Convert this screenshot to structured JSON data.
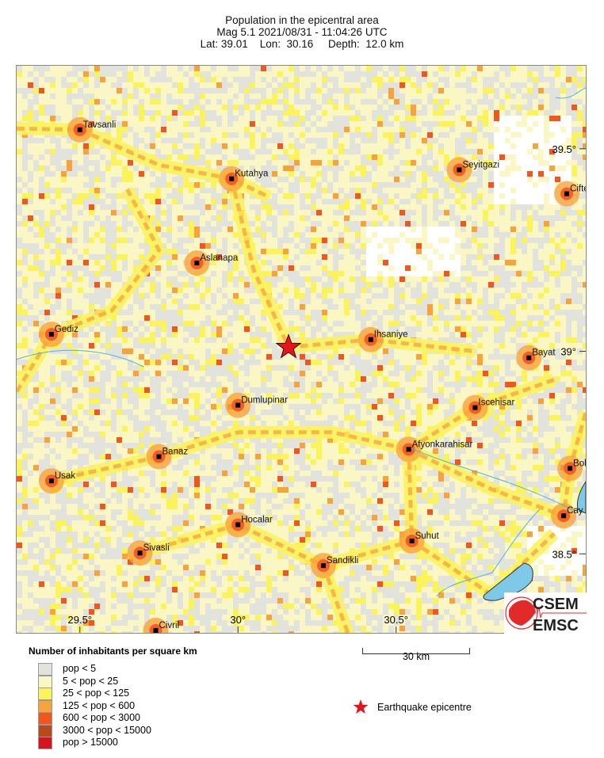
{
  "header": {
    "title": "Population in the epicentral area",
    "line2": "Mag 5.1  2021/08/31 - 11:04:26 UTC",
    "line3": "Lat: 39.01    Lon:  30.16     Depth:  12.0 km"
  },
  "map": {
    "extent": {
      "lon_min": 29.3,
      "lon_max": 31.1,
      "lat_min": 38.305,
      "lat_max": 39.705
    },
    "lon_ticks": [
      {
        "value": 29.5,
        "label": "29.5°"
      },
      {
        "value": 30,
        "label": "30°"
      },
      {
        "value": 30.5,
        "label": "30.5°"
      }
    ],
    "lat_ticks": [
      {
        "value": 39.5,
        "label": "39.5°"
      },
      {
        "value": 39,
        "label": "39°"
      },
      {
        "value": 38.5,
        "label": "38.5°"
      }
    ],
    "epicentre": {
      "lon": 30.16,
      "lat": 39.01,
      "color": "#e8141c"
    },
    "cities": [
      {
        "name": "Tavsanli",
        "lon": 29.5,
        "lat": 39.547
      },
      {
        "name": "Kutahya",
        "lon": 29.98,
        "lat": 39.426
      },
      {
        "name": "Aslanapa",
        "lon": 29.87,
        "lat": 39.218
      },
      {
        "name": "Gediz",
        "lon": 29.41,
        "lat": 39.042
      },
      {
        "name": "Ihsaniye",
        "lon": 30.42,
        "lat": 39.029
      },
      {
        "name": "Seyitgazi",
        "lon": 30.7,
        "lat": 39.448
      },
      {
        "name": "Cifte",
        "lon": 31.04,
        "lat": 39.389
      },
      {
        "name": "Bayat",
        "lon": 30.92,
        "lat": 38.984
      },
      {
        "name": "Dumlupinar",
        "lon": 30.0,
        "lat": 38.867
      },
      {
        "name": "Iscehisar",
        "lon": 30.75,
        "lat": 38.861
      },
      {
        "name": "Afyonkarahisar",
        "lon": 30.54,
        "lat": 38.758
      },
      {
        "name": "Banaz",
        "lon": 29.75,
        "lat": 38.74
      },
      {
        "name": "Usak",
        "lon": 29.41,
        "lat": 38.68
      },
      {
        "name": "Bol",
        "lon": 31.05,
        "lat": 38.711
      },
      {
        "name": "Cay",
        "lon": 31.03,
        "lat": 38.594
      },
      {
        "name": "Hocalar",
        "lon": 30.0,
        "lat": 38.572
      },
      {
        "name": "Suhut",
        "lon": 30.55,
        "lat": 38.532
      },
      {
        "name": "Sivasli",
        "lon": 29.69,
        "lat": 38.502
      },
      {
        "name": "Sandikli",
        "lon": 30.27,
        "lat": 38.471
      },
      {
        "name": "Civril",
        "lon": 29.74,
        "lat": 38.311
      }
    ],
    "colors": {
      "water": "#7ec8e8",
      "river": "#4fb3d9"
    }
  },
  "legend": {
    "title": "Number of inhabitants per square km",
    "classes": [
      {
        "label": "pop < 5",
        "color": "#e3e3de"
      },
      {
        "label": "5 < pop < 25",
        "color": "#fbf7c5"
      },
      {
        "label": "25 < pop < 125",
        "color": "#faf35a"
      },
      {
        "label": "125 < pop < 600",
        "color": "#f7a23b"
      },
      {
        "label": "600 < pop < 3000",
        "color": "#f0561e"
      },
      {
        "label": "3000 < pop < 15000",
        "color": "#b64a1c"
      },
      {
        "label": "pop > 15000",
        "color": "#d9131b"
      }
    ],
    "epicentre_label": "Earthquake epicentre"
  },
  "scale_bar": {
    "label": "30 km"
  },
  "logo": {
    "top": "CSEM",
    "bottom": "EMSC",
    "color": "#e32a2a"
  }
}
